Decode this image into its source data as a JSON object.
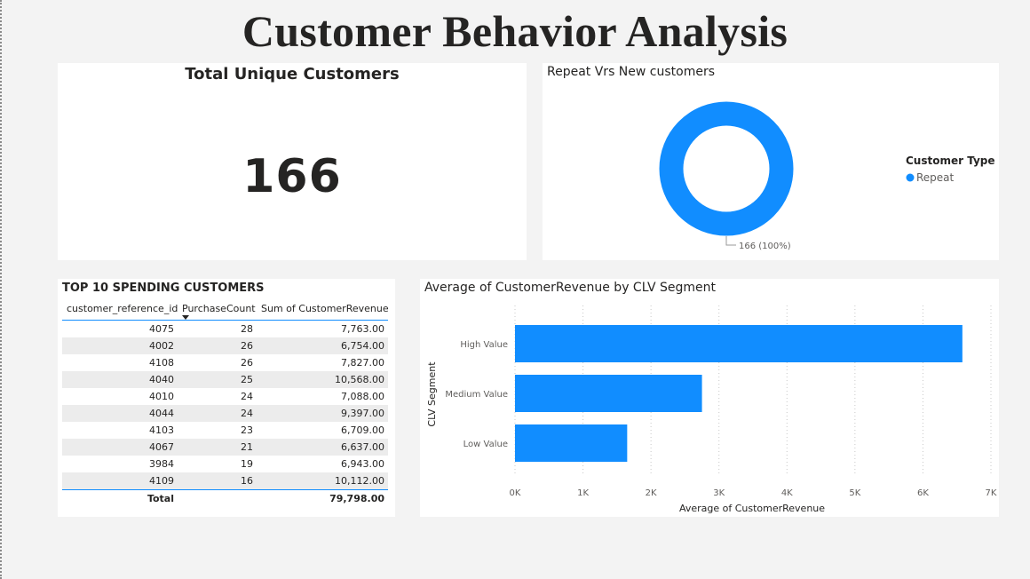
{
  "page": {
    "title": "Customer Behavior Analysis"
  },
  "kpi": {
    "title": "Total Unique Customers",
    "value": "166"
  },
  "donut": {
    "title": "Repeat Vrs New customers",
    "legend_title": "Customer Type",
    "legend_items": [
      "Repeat"
    ],
    "data_label": "166 (100%)",
    "color": "#118dff"
  },
  "table": {
    "title": "TOP 10 SPENDING CUSTOMERS",
    "columns": [
      "customer_reference_id",
      "PurchaseCount",
      "Sum of CustomerRevenue"
    ],
    "rows": [
      [
        "4075",
        "28",
        "7,763.00"
      ],
      [
        "4002",
        "26",
        "6,754.00"
      ],
      [
        "4108",
        "26",
        "7,827.00"
      ],
      [
        "4040",
        "25",
        "10,568.00"
      ],
      [
        "4010",
        "24",
        "7,088.00"
      ],
      [
        "4044",
        "24",
        "9,397.00"
      ],
      [
        "4103",
        "23",
        "6,709.00"
      ],
      [
        "4067",
        "21",
        "6,637.00"
      ],
      [
        "3984",
        "19",
        "6,943.00"
      ],
      [
        "4109",
        "16",
        "10,112.00"
      ]
    ],
    "total_label": "Total",
    "total_value": "79,798.00"
  },
  "chart_data": {
    "type": "bar",
    "orientation": "horizontal",
    "title": "Average of CustomerRevenue by CLV Segment",
    "categories": [
      "High Value",
      "Medium Value",
      "Low Value"
    ],
    "values": [
      6580,
      2750,
      1650
    ],
    "xlabel": "Average of CustomerRevenue",
    "ylabel": "CLV Segment",
    "xlim": [
      0,
      7000
    ],
    "xticks": [
      "0K",
      "1K",
      "2K",
      "3K",
      "4K",
      "5K",
      "6K",
      "7K"
    ],
    "grid": true,
    "color": "#118dff"
  }
}
